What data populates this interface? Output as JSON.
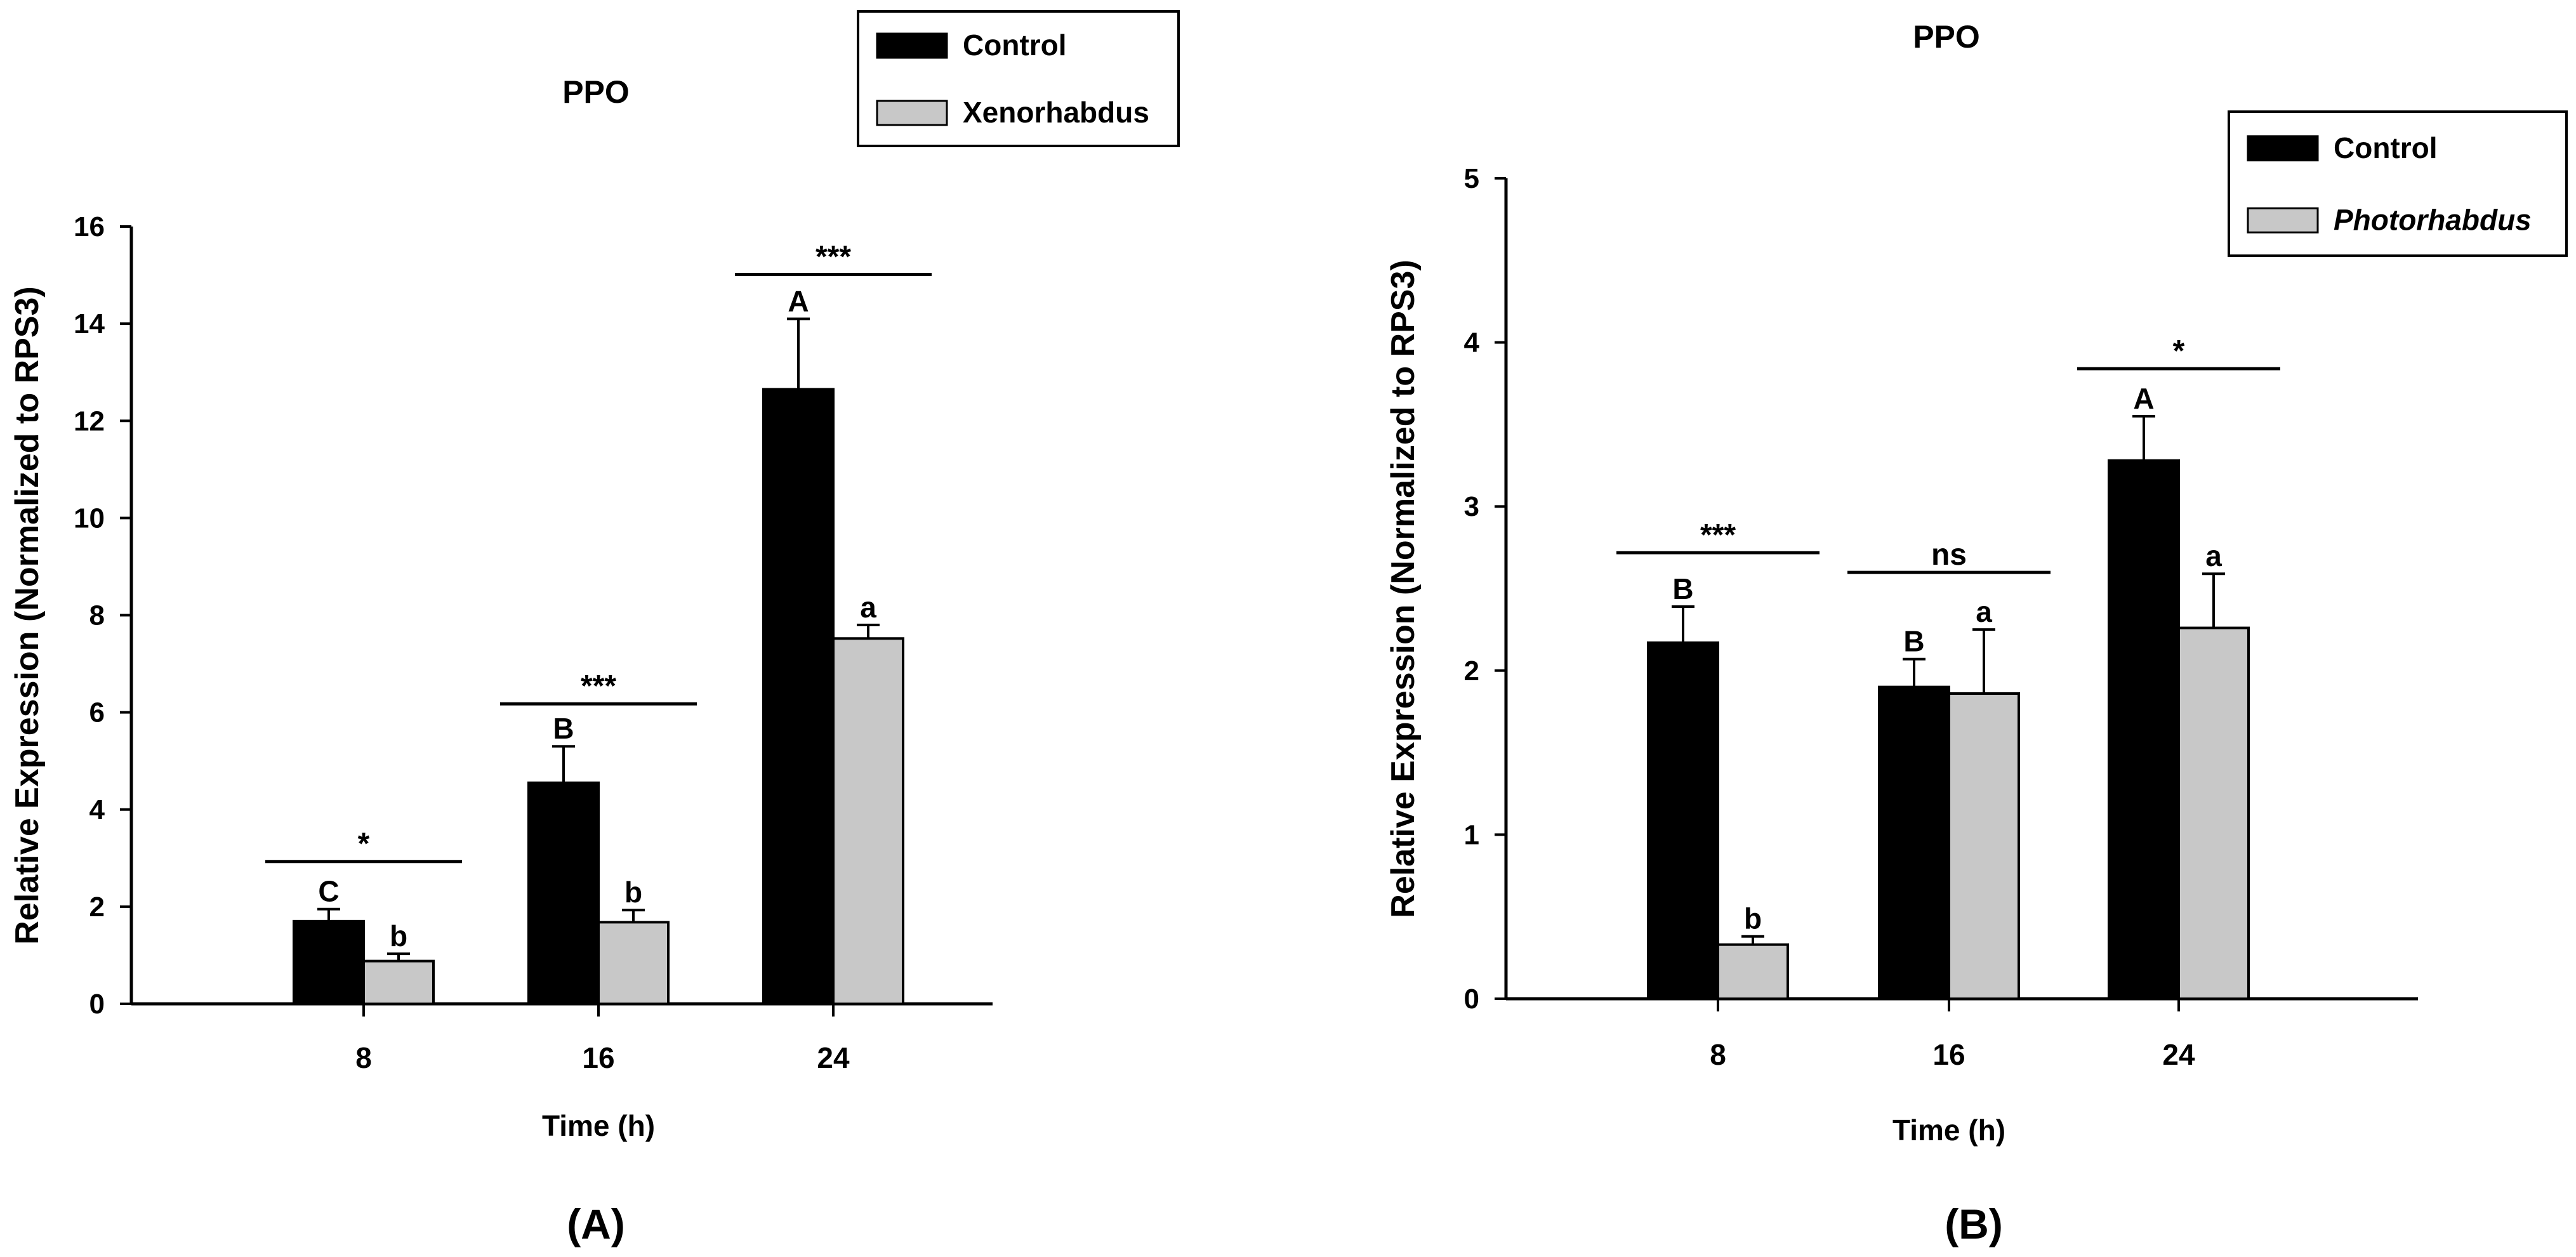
{
  "chart_data": [
    {
      "panel_label": "(A)",
      "type": "bar",
      "title": "PPO",
      "xlabel": "Time (h)",
      "ylabel": "Relative Expression (Normalized to RPS3)",
      "categories": [
        "8",
        "16",
        "24"
      ],
      "ylim": [
        0,
        16
      ],
      "yticks": [
        "0",
        "2",
        "4",
        "6",
        "8",
        "10",
        "12",
        "14",
        "16"
      ],
      "legend_position": "top-right",
      "series": [
        {
          "name": "Control",
          "italic": false,
          "color": "#000000",
          "values": [
            1.7,
            4.55,
            12.65
          ],
          "errors": [
            0.25,
            0.75,
            1.45
          ],
          "letters": [
            "C",
            "B",
            "A"
          ]
        },
        {
          "name": "Xenorhabdus",
          "italic": false,
          "color": "#c8c8c8",
          "values": [
            0.88,
            1.68,
            7.52
          ],
          "errors": [
            0.15,
            0.25,
            0.28
          ],
          "letters": [
            "b",
            "b",
            "a"
          ]
        }
      ],
      "significance": [
        "*",
        "***",
        "***"
      ]
    },
    {
      "panel_label": "(B)",
      "type": "bar",
      "title": "PPO",
      "xlabel": "Time (h)",
      "ylabel": "Relative Expression (Normalized to RPS3)",
      "categories": [
        "8",
        "16",
        "24"
      ],
      "ylim": [
        0,
        5
      ],
      "yticks": [
        "0",
        "1",
        "2",
        "3",
        "4",
        "5"
      ],
      "legend_position": "top-right",
      "series": [
        {
          "name": "Control",
          "italic": false,
          "color": "#000000",
          "values": [
            2.17,
            1.9,
            3.28
          ],
          "errors": [
            0.22,
            0.17,
            0.27
          ],
          "letters": [
            "B",
            "B",
            "A"
          ]
        },
        {
          "name": "Photorhabdus",
          "italic": true,
          "color": "#c8c8c8",
          "values": [
            0.33,
            1.86,
            2.26
          ],
          "errors": [
            0.05,
            0.39,
            0.33
          ],
          "letters": [
            "b",
            "a",
            "a"
          ]
        }
      ],
      "significance": [
        "***",
        "ns",
        "*"
      ]
    }
  ]
}
